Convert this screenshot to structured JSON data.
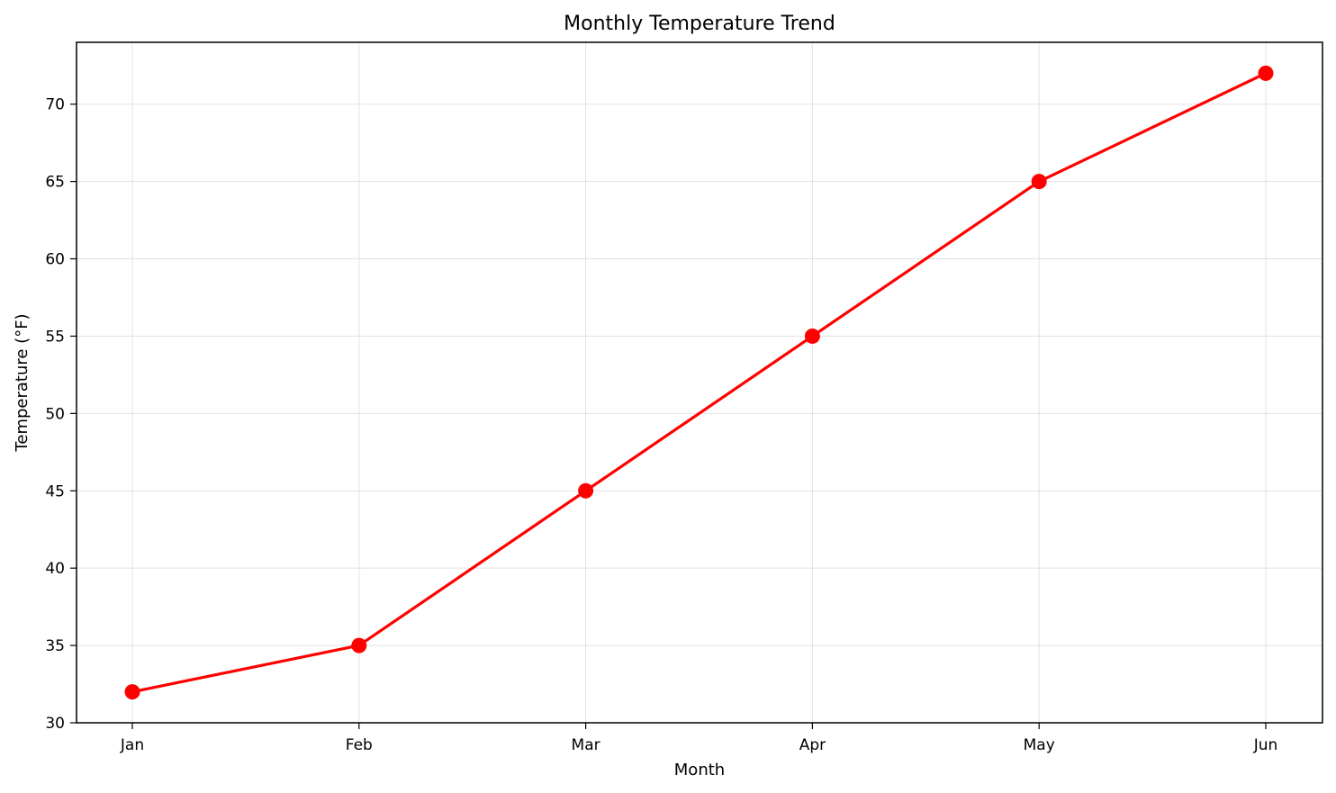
{
  "chart_data": {
    "type": "line",
    "title": "Monthly Temperature Trend",
    "xlabel": "Month",
    "ylabel": "Temperature (°F)",
    "categories": [
      "Jan",
      "Feb",
      "Mar",
      "Apr",
      "May",
      "Jun"
    ],
    "series": [
      {
        "values": [
          32,
          35,
          45,
          55,
          65,
          72
        ],
        "color": "#ff0000",
        "marker": "circle"
      }
    ],
    "ylim": [
      30,
      74
    ],
    "yticks": [
      30,
      35,
      40,
      45,
      50,
      55,
      60,
      65,
      70
    ],
    "grid": true,
    "legend": "none"
  }
}
